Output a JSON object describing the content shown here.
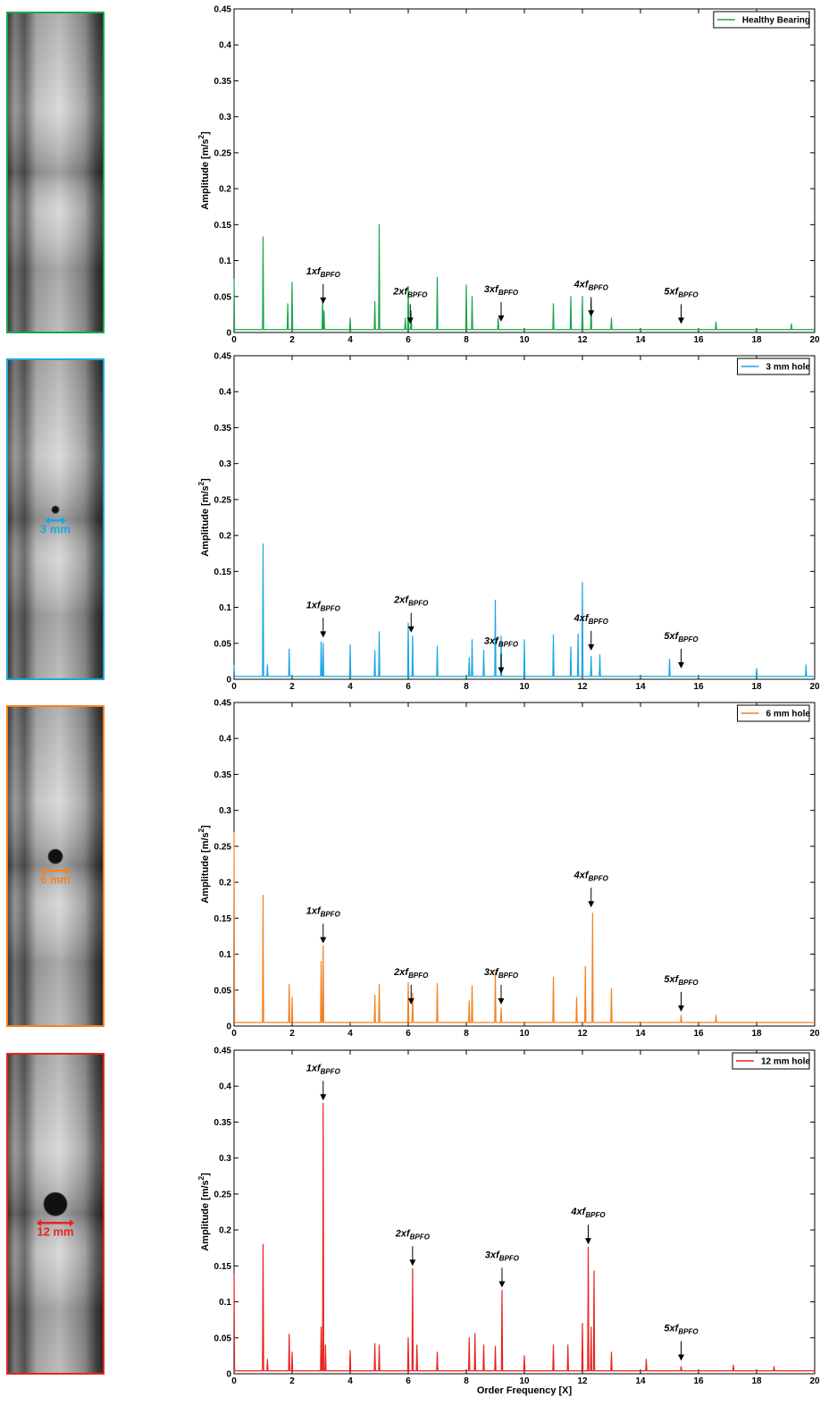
{
  "chart_data": [
    {
      "type": "line",
      "legend": "upper right",
      "ylabel": {
        "text": "Amplitude [m/s",
        "sup": "2",
        "end": "]"
      },
      "xlim": [
        0,
        20
      ],
      "xticks": [
        0,
        2,
        4,
        6,
        8,
        10,
        12,
        14,
        16,
        18,
        20
      ],
      "ylim": [
        0,
        0.45
      ],
      "yticks": [
        0,
        0.05,
        0.1,
        0.15,
        0.2,
        0.25,
        0.3,
        0.35,
        0.4,
        0.45
      ],
      "series": [
        {
          "name": "Healthy Bearing",
          "color": "#1aa64a",
          "x": [
            0,
            0.02,
            0.98,
            1,
            1.02,
            1.83,
            1.85,
            1.87,
            1.98,
            2,
            2.02,
            3.03,
            3.05,
            3.07,
            3.08,
            3.1,
            3.12,
            3.98,
            4,
            4.02,
            4.83,
            4.85,
            4.87,
            4.98,
            5,
            5.02,
            5.88,
            5.9,
            5.92,
            5.98,
            6,
            6.02,
            6.08,
            6.1,
            6.12,
            6.98,
            7,
            7.02,
            7.98,
            8,
            8.02,
            8.18,
            8.2,
            8.22,
            9.08,
            9.1,
            9.12,
            10.98,
            11,
            11.02,
            11.58,
            11.6,
            11.62,
            11.98,
            12,
            12.02,
            12.28,
            12.3,
            12.32,
            12.98,
            13,
            13.02,
            16.58,
            16.6,
            16.62,
            19.18,
            19.2,
            19.22,
            20
          ],
          "values": [
            0.075,
            0.004,
            0.004,
            0.133,
            0.004,
            0.004,
            0.04,
            0.004,
            0.004,
            0.07,
            0.004,
            0.004,
            0.045,
            0.004,
            0.004,
            0.03,
            0.004,
            0.004,
            0.02,
            0.004,
            0.004,
            0.043,
            0.004,
            0.004,
            0.15,
            0.004,
            0.004,
            0.02,
            0.004,
            0.004,
            0.064,
            0.004,
            0.004,
            0.03,
            0.004,
            0.004,
            0.077,
            0.004,
            0.004,
            0.066,
            0.004,
            0.004,
            0.05,
            0.004,
            0.004,
            0.02,
            0.004,
            0.004,
            0.04,
            0.004,
            0.004,
            0.05,
            0.004,
            0.004,
            0.05,
            0.004,
            0.004,
            0.045,
            0.004,
            0.004,
            0.02,
            0.004,
            0.004,
            0.015,
            0.004,
            0.004,
            0.012,
            0.004,
            0.004
          ]
        }
      ],
      "annotations": [
        {
          "label": "1xf",
          "sub": "BPFO",
          "x": 3.07,
          "y": 0.04
        },
        {
          "label": "2xf",
          "sub": "BPFO",
          "x": 6.07,
          "y": 0.012
        },
        {
          "label": "3xf",
          "sub": "BPFO",
          "x": 9.2,
          "y": 0.015
        },
        {
          "label": "4xf",
          "sub": "BPFO",
          "x": 12.3,
          "y": 0.022
        },
        {
          "label": "5xf",
          "sub": "BPFO",
          "x": 15.4,
          "y": 0.012
        }
      ]
    },
    {
      "type": "line",
      "legend": "upper right",
      "photo_label": "3 mm",
      "ylabel": {
        "text": "Amplitude [m/s",
        "sup": "2",
        "end": "]"
      },
      "xlim": [
        0,
        20
      ],
      "xticks": [
        0,
        2,
        4,
        6,
        8,
        10,
        12,
        14,
        16,
        18,
        20
      ],
      "ylim": [
        0,
        0.45
      ],
      "yticks": [
        0,
        0.05,
        0.1,
        0.15,
        0.2,
        0.25,
        0.3,
        0.35,
        0.4,
        0.45
      ],
      "series": [
        {
          "name": "3 mm hole",
          "color": "#1ba7e1",
          "x": [
            0,
            0.02,
            0.98,
            1,
            1.02,
            1.13,
            1.15,
            1.17,
            1.88,
            1.9,
            1.92,
            2.98,
            3,
            3.02,
            3.05,
            3.07,
            3.09,
            3.98,
            4,
            4.02,
            4.83,
            4.85,
            4.87,
            4.98,
            5,
            5.02,
            5.98,
            6,
            6.02,
            6.13,
            6.15,
            6.17,
            6.98,
            7,
            7.02,
            8.08,
            8.1,
            8.12,
            8.18,
            8.2,
            8.22,
            8.58,
            8.6,
            8.62,
            8.98,
            9,
            9.02,
            9.18,
            9.2,
            9.22,
            9.98,
            10,
            10.02,
            10.98,
            11,
            11.02,
            11.58,
            11.6,
            11.62,
            11.83,
            11.85,
            11.87,
            11.98,
            12,
            12.02,
            12.28,
            12.3,
            12.32,
            12.58,
            12.6,
            12.62,
            14.98,
            15,
            15.02,
            17.98,
            18,
            18.02,
            19.68,
            19.7,
            19.72,
            20
          ],
          "values": [
            0.02,
            0.004,
            0.004,
            0.188,
            0.004,
            0.004,
            0.02,
            0.004,
            0.004,
            0.042,
            0.004,
            0.004,
            0.052,
            0.004,
            0.004,
            0.05,
            0.004,
            0.004,
            0.048,
            0.004,
            0.004,
            0.04,
            0.004,
            0.004,
            0.066,
            0.004,
            0.004,
            0.078,
            0.004,
            0.004,
            0.06,
            0.004,
            0.004,
            0.046,
            0.004,
            0.004,
            0.03,
            0.004,
            0.004,
            0.055,
            0.004,
            0.004,
            0.04,
            0.004,
            0.004,
            0.11,
            0.004,
            0.004,
            0.06,
            0.004,
            0.004,
            0.055,
            0.004,
            0.004,
            0.062,
            0.004,
            0.004,
            0.045,
            0.004,
            0.004,
            0.063,
            0.004,
            0.004,
            0.135,
            0.004,
            0.004,
            0.032,
            0.004,
            0.004,
            0.034,
            0.004,
            0.004,
            0.028,
            0.004,
            0.004,
            0.015,
            0.004,
            0.004,
            0.02,
            0.004,
            0.004
          ]
        }
      ],
      "annotations": [
        {
          "label": "1xf",
          "sub": "BPFO",
          "x": 3.07,
          "y": 0.058
        },
        {
          "label": "2xf",
          "sub": "BPFO",
          "x": 6.1,
          "y": 0.065
        },
        {
          "label": "3xf",
          "sub": "BPFO",
          "x": 9.2,
          "y": 0.008
        },
        {
          "label": "4xf",
          "sub": "BPFO",
          "x": 12.3,
          "y": 0.04
        },
        {
          "label": "5xf",
          "sub": "BPFO",
          "x": 15.4,
          "y": 0.015
        }
      ]
    },
    {
      "type": "line",
      "legend": "upper right",
      "photo_label": "6 mm",
      "ylabel": {
        "text": "Amplitude [m/s",
        "sup": "2",
        "end": "]"
      },
      "xlim": [
        0,
        20
      ],
      "xticks": [
        0,
        2,
        4,
        6,
        8,
        10,
        12,
        14,
        16,
        18,
        20
      ],
      "ylim": [
        0,
        0.45
      ],
      "yticks": [
        0,
        0.05,
        0.1,
        0.15,
        0.2,
        0.25,
        0.3,
        0.35,
        0.4,
        0.45
      ],
      "series": [
        {
          "name": "6 mm hole",
          "color": "#f28121",
          "x": [
            0,
            0.02,
            0.98,
            1,
            1.02,
            1.88,
            1.9,
            1.92,
            1.98,
            2,
            2.02,
            2.98,
            3,
            3.02,
            3.05,
            3.07,
            3.09,
            4.83,
            4.85,
            4.87,
            4.98,
            5,
            5.02,
            5.98,
            6,
            6.02,
            6.13,
            6.15,
            6.17,
            6.98,
            7,
            7.02,
            8.08,
            8.1,
            8.12,
            8.18,
            8.2,
            8.22,
            8.98,
            9,
            9.02,
            9.18,
            9.2,
            9.22,
            10.98,
            11,
            11.02,
            11.78,
            11.8,
            11.82,
            12.08,
            12.1,
            12.12,
            12.33,
            12.35,
            12.37,
            12.98,
            13,
            13.02,
            15.38,
            15.4,
            15.42,
            16.58,
            16.6,
            16.62,
            20
          ],
          "values": [
            0.27,
            0.005,
            0.005,
            0.182,
            0.005,
            0.005,
            0.058,
            0.005,
            0.005,
            0.04,
            0.005,
            0.005,
            0.09,
            0.005,
            0.005,
            0.112,
            0.005,
            0.005,
            0.043,
            0.005,
            0.005,
            0.058,
            0.005,
            0.005,
            0.06,
            0.005,
            0.005,
            0.046,
            0.005,
            0.005,
            0.059,
            0.005,
            0.005,
            0.035,
            0.005,
            0.005,
            0.056,
            0.005,
            0.005,
            0.075,
            0.005,
            0.005,
            0.025,
            0.005,
            0.005,
            0.068,
            0.005,
            0.005,
            0.04,
            0.005,
            0.005,
            0.083,
            0.005,
            0.005,
            0.157,
            0.005,
            0.005,
            0.052,
            0.005,
            0.005,
            0.015,
            0.005,
            0.005,
            0.015,
            0.005,
            0.005
          ]
        }
      ],
      "annotations": [
        {
          "label": "1xf",
          "sub": "BPFO",
          "x": 3.07,
          "y": 0.115
        },
        {
          "label": "2xf",
          "sub": "BPFO",
          "x": 6.1,
          "y": 0.03
        },
        {
          "label": "3xf",
          "sub": "BPFO",
          "x": 9.2,
          "y": 0.03
        },
        {
          "label": "4xf",
          "sub": "BPFO",
          "x": 12.3,
          "y": 0.165
        },
        {
          "label": "5xf",
          "sub": "BPFO",
          "x": 15.4,
          "y": 0.02
        }
      ]
    },
    {
      "type": "line",
      "legend": "upper right",
      "photo_label": "12 mm",
      "ylabel": {
        "text": "Amplitude [m/s",
        "sup": "2",
        "end": "]"
      },
      "xlabel": "Order Frequency [X]",
      "xlim": [
        0,
        20
      ],
      "xticks": [
        0,
        2,
        4,
        6,
        8,
        10,
        12,
        14,
        16,
        18,
        20
      ],
      "ylim": [
        0,
        0.45
      ],
      "yticks": [
        0,
        0.05,
        0.1,
        0.15,
        0.2,
        0.25,
        0.3,
        0.35,
        0.4,
        0.45
      ],
      "series": [
        {
          "name": "12 mm hole",
          "color": "#e8231f",
          "x": [
            0,
            0.02,
            0.98,
            1,
            1.02,
            1.13,
            1.15,
            1.17,
            1.88,
            1.9,
            1.92,
            1.98,
            2,
            2.02,
            2.98,
            3,
            3.02,
            3.05,
            3.07,
            3.09,
            3.13,
            3.15,
            3.17,
            3.98,
            4,
            4.02,
            4.83,
            4.85,
            4.87,
            4.98,
            5,
            5.02,
            5.98,
            6,
            6.02,
            6.13,
            6.15,
            6.17,
            6.28,
            6.3,
            6.32,
            6.98,
            7,
            7.02,
            8.08,
            8.1,
            8.12,
            8.28,
            8.3,
            8.32,
            8.58,
            8.6,
            8.62,
            8.98,
            9,
            9.02,
            9.21,
            9.23,
            9.25,
            9.98,
            10,
            10.02,
            10.98,
            11,
            11.02,
            11.48,
            11.5,
            11.52,
            11.98,
            12,
            12.02,
            12.18,
            12.2,
            12.22,
            12.28,
            12.3,
            12.32,
            12.38,
            12.4,
            12.42,
            12.98,
            13,
            13.02,
            14.18,
            14.2,
            14.22,
            15.38,
            15.4,
            15.42,
            17.18,
            17.2,
            17.22,
            18.58,
            18.6,
            18.62,
            20
          ],
          "values": [
            0.14,
            0.004,
            0.004,
            0.18,
            0.004,
            0.004,
            0.02,
            0.004,
            0.004,
            0.055,
            0.004,
            0.004,
            0.03,
            0.004,
            0.004,
            0.065,
            0.004,
            0.004,
            0.376,
            0.004,
            0.004,
            0.04,
            0.004,
            0.004,
            0.032,
            0.004,
            0.004,
            0.042,
            0.004,
            0.004,
            0.04,
            0.004,
            0.004,
            0.05,
            0.004,
            0.004,
            0.146,
            0.004,
            0.004,
            0.04,
            0.004,
            0.004,
            0.03,
            0.004,
            0.004,
            0.05,
            0.004,
            0.004,
            0.056,
            0.004,
            0.004,
            0.04,
            0.004,
            0.004,
            0.038,
            0.004,
            0.004,
            0.116,
            0.004,
            0.004,
            0.025,
            0.004,
            0.004,
            0.04,
            0.004,
            0.004,
            0.04,
            0.004,
            0.004,
            0.07,
            0.004,
            0.004,
            0.176,
            0.004,
            0.004,
            0.065,
            0.004,
            0.004,
            0.143,
            0.004,
            0.004,
            0.03,
            0.004,
            0.004,
            0.02,
            0.004,
            0.004,
            0.01,
            0.004,
            0.004,
            0.012,
            0.004,
            0.004,
            0.01,
            0.004,
            0.004
          ]
        }
      ],
      "annotations": [
        {
          "label": "1xf",
          "sub": "BPFO",
          "x": 3.07,
          "y": 0.38
        },
        {
          "label": "2xf",
          "sub": "BPFO",
          "x": 6.15,
          "y": 0.15
        },
        {
          "label": "3xf",
          "sub": "BPFO",
          "x": 9.23,
          "y": 0.12
        },
        {
          "label": "4xf",
          "sub": "BPFO",
          "x": 12.2,
          "y": 0.18
        },
        {
          "label": "5xf",
          "sub": "BPFO",
          "x": 15.4,
          "y": 0.018
        }
      ]
    }
  ]
}
